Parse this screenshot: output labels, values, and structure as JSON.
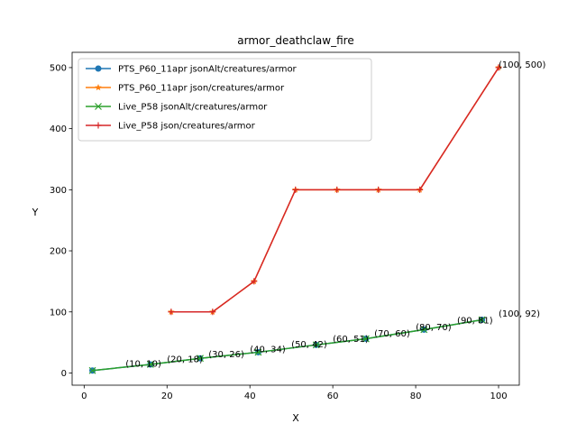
{
  "chart_data": {
    "type": "line",
    "title": "armor_deathclaw_fire",
    "xlabel": "X",
    "ylabel": "Y",
    "xlim": [
      -2.9,
      105
    ],
    "ylim": [
      -20,
      525
    ],
    "xticks": [
      0,
      20,
      40,
      60,
      80,
      100
    ],
    "yticks": [
      0,
      100,
      200,
      300,
      400,
      500
    ],
    "legend_position": "upper-left",
    "series": [
      {
        "name": "PTS_P60_11apr jsonAlt/creatures/armor",
        "color": "#1f77b4",
        "marker": "circle",
        "x": [
          2,
          16,
          28,
          42,
          56,
          68,
          82,
          96
        ],
        "y": [
          4,
          14,
          24,
          34,
          46,
          56,
          71,
          87
        ]
      },
      {
        "name": "PTS_P60_11apr json/creatures/armor",
        "color": "#ff7f0e",
        "marker": "star",
        "x": [
          21,
          31,
          41,
          51,
          61,
          71,
          81,
          100
        ],
        "y": [
          100,
          100,
          150,
          300,
          300,
          300,
          300,
          500
        ]
      },
      {
        "name": "Live_P58 jsonAlt/creatures/armor",
        "color": "#2ca02c",
        "marker": "x",
        "x": [
          2,
          16,
          28,
          42,
          56,
          68,
          82,
          96
        ],
        "y": [
          4,
          14,
          24,
          34,
          46,
          56,
          71,
          87
        ]
      },
      {
        "name": "Live_P58 json/creatures/armor",
        "color": "#d62728",
        "marker": "plus",
        "x": [
          21,
          31,
          41,
          51,
          61,
          71,
          81,
          100
        ],
        "y": [
          100,
          100,
          150,
          300,
          300,
          300,
          300,
          500
        ]
      }
    ],
    "annotations": [
      {
        "text": "(10, 10)",
        "x": 10,
        "y": 10
      },
      {
        "text": "(20, 18)",
        "x": 20,
        "y": 18
      },
      {
        "text": "(30, 26)",
        "x": 30,
        "y": 26
      },
      {
        "text": "(40, 34)",
        "x": 40,
        "y": 34
      },
      {
        "text": "(50, 42)",
        "x": 50,
        "y": 42
      },
      {
        "text": "(60, 51)",
        "x": 60,
        "y": 51
      },
      {
        "text": "(70, 60)",
        "x": 70,
        "y": 60
      },
      {
        "text": "(80, 70)",
        "x": 80,
        "y": 70
      },
      {
        "text": "(90, 81)",
        "x": 90,
        "y": 81
      },
      {
        "text": "(100, 92)",
        "x": 100,
        "y": 92
      },
      {
        "text": "(100, 500)",
        "x": 100,
        "y": 500
      }
    ]
  }
}
